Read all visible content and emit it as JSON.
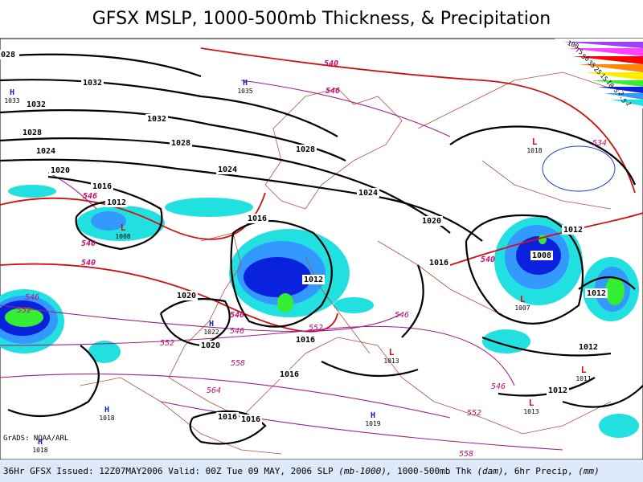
{
  "title": "GFSX MSLP, 1000-500mb Thickness, & Precipitation",
  "credit": "GrADS: NOAA/ARL",
  "footer": {
    "run": "36Hr GFSX Issued: 12Z07MAY2006 Valid: 00Z Tue 09 MAY, 2006",
    "slp": "SLP",
    "slp_units": "(mb-1000),",
    "thk": "1000-500mb Thk",
    "thk_units": "(dam),",
    "precip": "6hr Precip,",
    "precip_units": "(mm)"
  },
  "legend": [
    "100",
    "75",
    "50",
    "35",
    "25",
    "15",
    "10",
    "5",
    "2.5",
    "1"
  ],
  "isobar_labels": [
    "028",
    "1032",
    "1032",
    "1032",
    "1028",
    "1028",
    "1028",
    "1024",
    "1024",
    "1020",
    "1024",
    "1016",
    "1012",
    "1016",
    "1020",
    "1012",
    "1016",
    "1008",
    "1012",
    "1012",
    "1020",
    "1020",
    "1016",
    "1012",
    "1016",
    "1012",
    "1016",
    "1016"
  ],
  "thickness_labels": [
    "540",
    "546",
    "546",
    "540",
    "540",
    "540",
    "540",
    "546",
    "552",
    "546",
    "552",
    "552",
    "546",
    "558",
    "564",
    "546",
    "552",
    "534",
    "558"
  ],
  "highs": [
    {
      "symbol": "H",
      "value": "1033"
    },
    {
      "symbol": "H",
      "value": "1035"
    },
    {
      "symbol": "H",
      "value": "1022"
    },
    {
      "symbol": "H",
      "value": "1018"
    },
    {
      "symbol": "H",
      "value": "1019"
    },
    {
      "symbol": "H",
      "value": "1018"
    }
  ],
  "lows": [
    {
      "symbol": "L",
      "value": "1008"
    },
    {
      "symbol": "L",
      "value": "1007"
    },
    {
      "symbol": "L",
      "value": "1018"
    },
    {
      "symbol": "L",
      "value": "1013"
    },
    {
      "symbol": "L",
      "value": "1011"
    },
    {
      "symbol": "L",
      "value": "1013"
    }
  ]
}
